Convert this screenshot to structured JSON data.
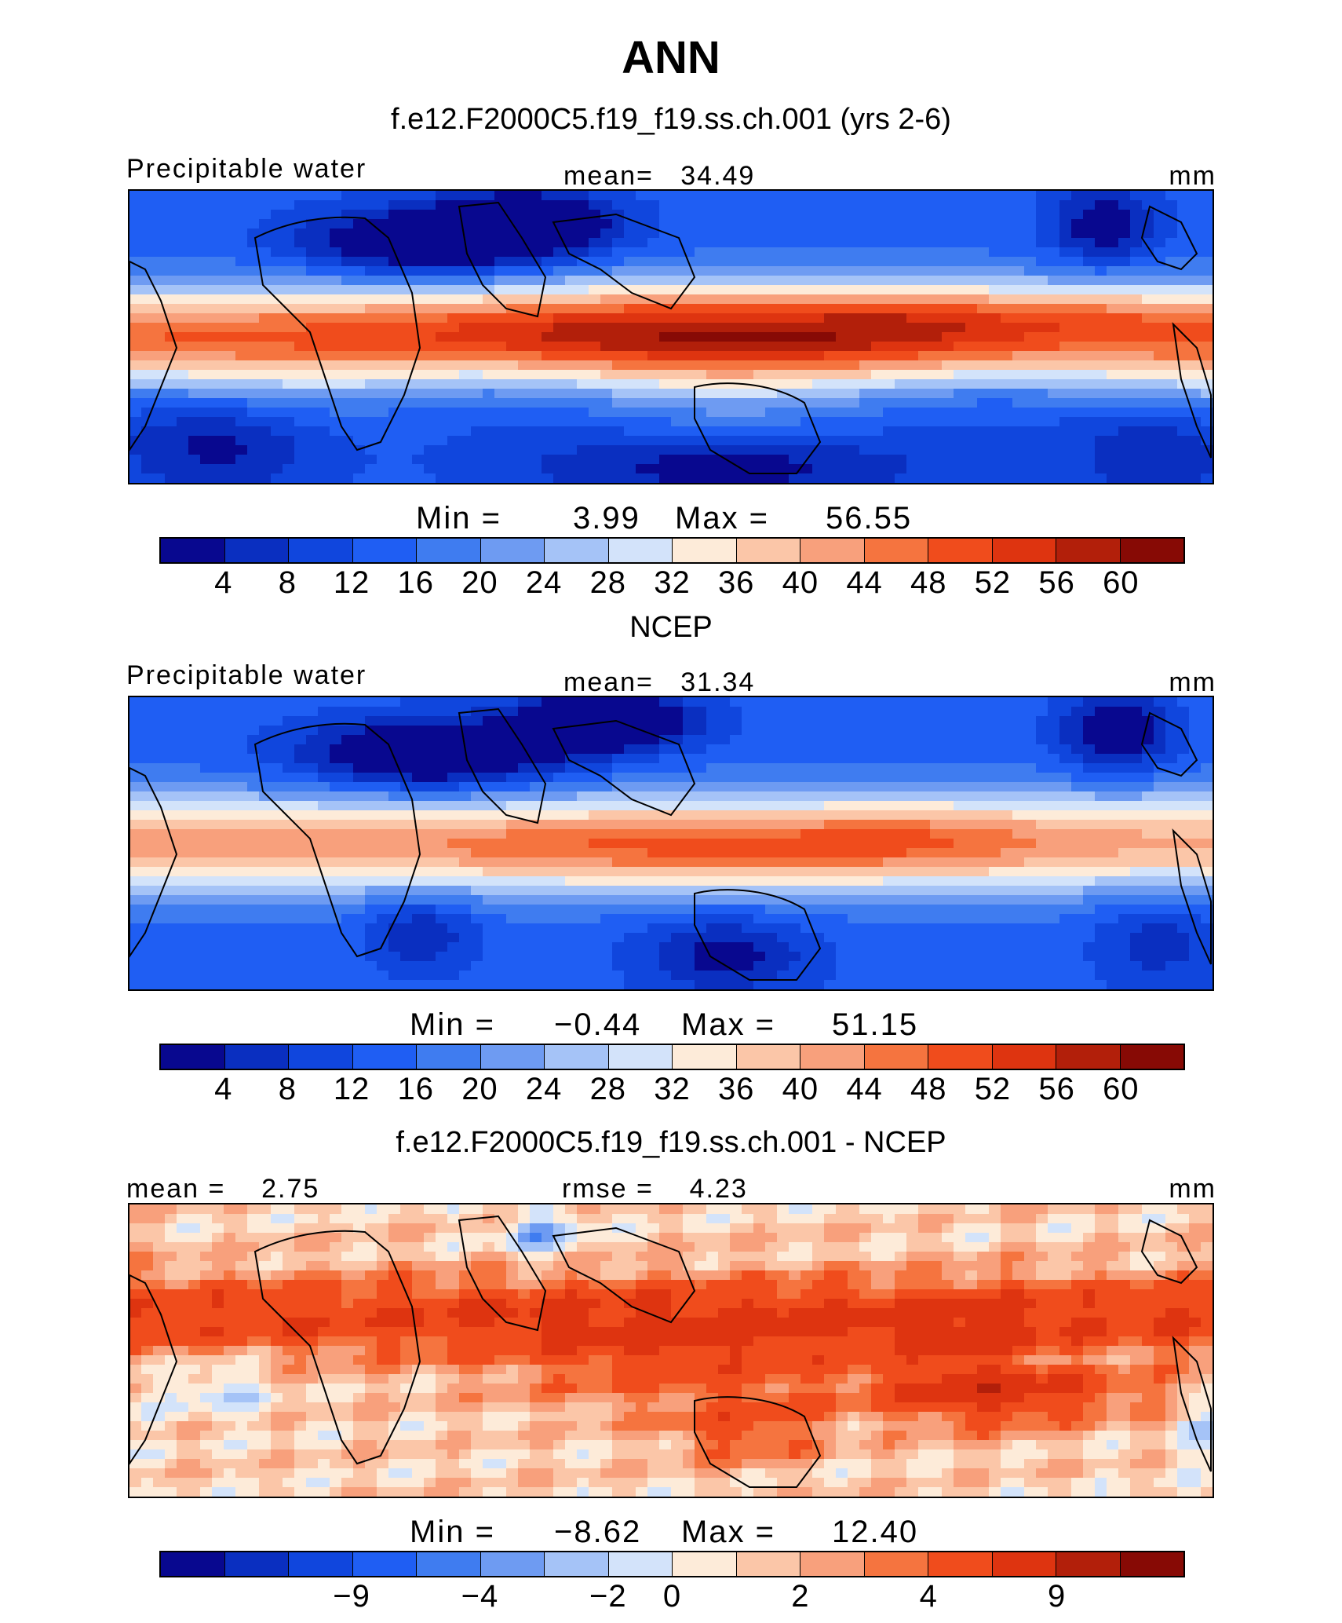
{
  "chart_data": [
    {
      "type": "heatmap",
      "panel": "model",
      "title": "ANN",
      "subtitle": "f.e12.F2000C5.f19_f19.ss.ch.001 (yrs 2-6)",
      "variable_label": "Precipitable water",
      "stat_text": "mean=   34.49",
      "units": "mm",
      "min_label": "Min =",
      "min_value": "3.99",
      "max_label": "Max =",
      "max_value": "56.55",
      "colorbar_ticks": [
        "4",
        "8",
        "12",
        "16",
        "20",
        "24",
        "28",
        "32",
        "36",
        "40",
        "44",
        "48",
        "52",
        "56",
        "60"
      ]
    },
    {
      "type": "heatmap",
      "panel": "obs",
      "subtitle": "NCEP",
      "variable_label": "Precipitable water",
      "stat_text": "mean=   31.34",
      "units": "mm",
      "min_label": "Min =",
      "min_value": "−0.44",
      "max_label": "Max =",
      "max_value": "51.15",
      "colorbar_ticks": [
        "4",
        "8",
        "12",
        "16",
        "20",
        "24",
        "28",
        "32",
        "36",
        "40",
        "44",
        "48",
        "52",
        "56",
        "60"
      ]
    },
    {
      "type": "heatmap",
      "panel": "diff",
      "subtitle": "f.e12.F2000C5.f19_f19.ss.ch.001 - NCEP",
      "left_stat": "mean =    2.75",
      "stat_text": "rmse =    4.23",
      "units": "mm",
      "min_label": "Min =",
      "min_value": "−8.62",
      "max_label": "Max =",
      "max_value": "12.40",
      "colorbar_ticks": [
        "−9",
        "−4",
        "−2",
        "0",
        "2",
        "4",
        "9"
      ]
    }
  ],
  "colors": [
    "#08088f",
    "#0a2fc0",
    "#1046dd",
    "#1f5ef3",
    "#3f7cf0",
    "#6e9bf2",
    "#a5c3f7",
    "#d3e3fa",
    "#fdebd9",
    "#fbc6a8",
    "#f8a07c",
    "#f5743f",
    "#f04c1c",
    "#de3410",
    "#b21f0a",
    "#870a05"
  ]
}
